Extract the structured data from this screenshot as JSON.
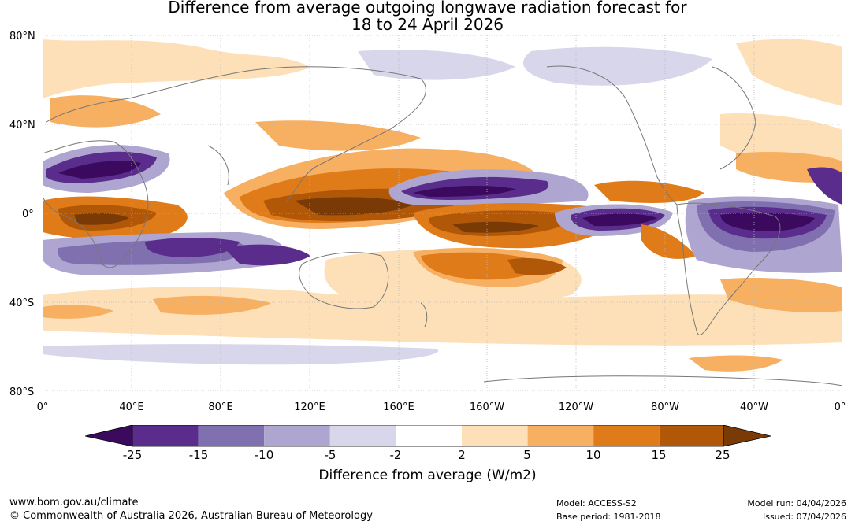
{
  "title": {
    "line1": "Difference from average outgoing longwave radiation forecast for",
    "line2": "18 to 24 April 2026"
  },
  "map": {
    "lat_labels": [
      "80°N",
      "40°N",
      "0°",
      "40°S",
      "80°S"
    ],
    "lon_labels": [
      "0°",
      "40°E",
      "80°E",
      "120°E",
      "160°E",
      "160°W",
      "120°W",
      "80°W",
      "40°W",
      "0°"
    ]
  },
  "colorbar": {
    "ticks": [
      "-25",
      "-15",
      "-10",
      "-5",
      "-2",
      "2",
      "5",
      "10",
      "15",
      "25"
    ],
    "colors": [
      "#3b0a5e",
      "#5a2d8c",
      "#8070b0",
      "#aea6d0",
      "#d8d6ea",
      "#ffffff",
      "#fde0b8",
      "#f7b062",
      "#e07b1a",
      "#b05808",
      "#7a3a06"
    ],
    "label": "Difference from average (W/m2)"
  },
  "footer": {
    "website": "www.bom.gov.au/climate",
    "copyright": "© Commonwealth of Australia 2026, Australian Bureau of Meteorology",
    "model": "Model: ACCESS-S2",
    "base_period": "Base period: 1981-2018",
    "model_run": "Model run: 04/04/2026",
    "issued": "Issued: 07/04/2026"
  }
}
